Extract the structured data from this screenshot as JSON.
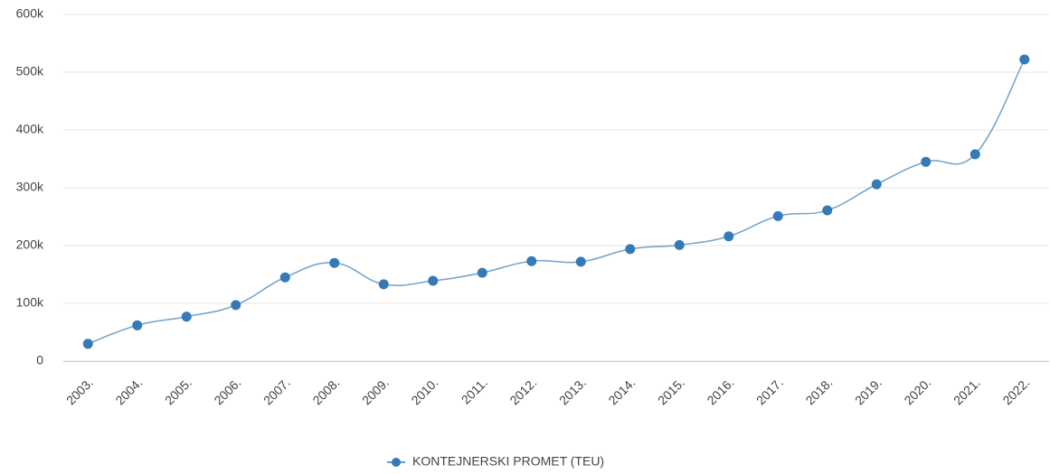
{
  "chart_data": {
    "type": "line",
    "categories": [
      "2003.",
      "2004.",
      "2005.",
      "2006.",
      "2007.",
      "2008.",
      "2009.",
      "2010.",
      "2011.",
      "2012.",
      "2013.",
      "2014.",
      "2015.",
      "2016.",
      "2017.",
      "2018.",
      "2019.",
      "2020.",
      "2021.",
      "2022."
    ],
    "series": [
      {
        "name": "KONTEJNERSKI PROMET (TEU)",
        "color": "#337ab7",
        "values": [
          30000,
          62000,
          77000,
          97000,
          145000,
          170000,
          133000,
          139000,
          153000,
          173000,
          172000,
          194000,
          201000,
          216000,
          251000,
          261000,
          306000,
          345000,
          358000,
          522000
        ]
      }
    ],
    "ylim": [
      0,
      600000
    ],
    "yticks": [
      0,
      {
        "value": 100000,
        "label": "100k"
      },
      {
        "value": 200000,
        "label": "200k"
      },
      {
        "value": 300000,
        "label": "300k"
      },
      {
        "value": 400000,
        "label": "400k"
      },
      {
        "value": 500000,
        "label": "500k"
      },
      {
        "value": 600000,
        "label": "600k"
      }
    ],
    "grid": true,
    "legend": "bottom"
  }
}
